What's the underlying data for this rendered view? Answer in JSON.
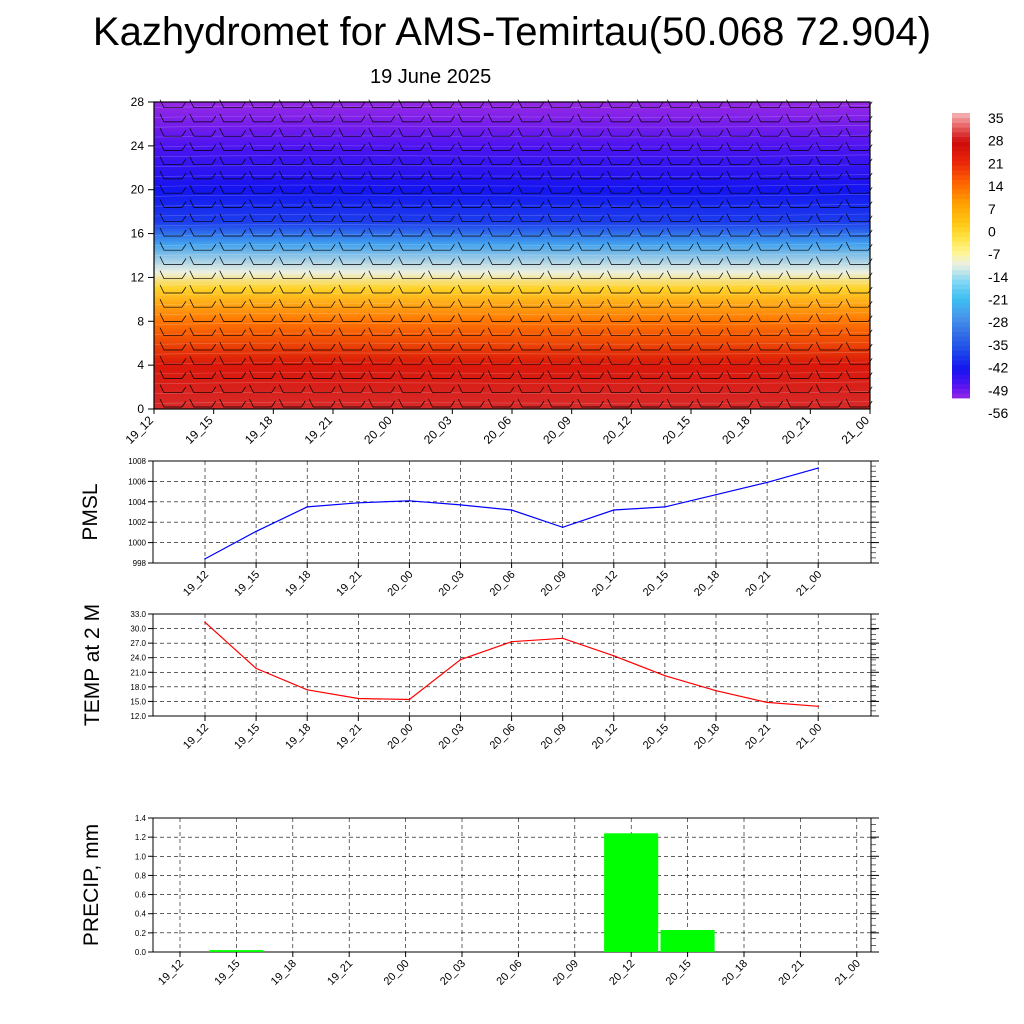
{
  "title": "Kazhydromet for AMS-Temirtau(50.068 72.904)",
  "subtitle": "19 June 2025",
  "time_labels": [
    "19_12",
    "19_15",
    "19_18",
    "19_21",
    "20_00",
    "20_03",
    "20_06",
    "20_09",
    "20_12",
    "20_15",
    "20_18",
    "20_21",
    "21_00"
  ],
  "colors": {
    "pmsl_line": "#0000ff",
    "temp_line": "#ff0000",
    "precip_bar": "#00ff00"
  },
  "chart_data": [
    {
      "type": "heatmap",
      "name": "temperature-cross-section",
      "y_ticks": [
        "0",
        "4",
        "8",
        "12",
        "16",
        "20",
        "24",
        "28"
      ],
      "ylim": [
        0,
        28
      ],
      "colorbar": {
        "labels": [
          "35",
          "28",
          "21",
          "14",
          "7",
          "0",
          "-7",
          "-14",
          "-21",
          "-28",
          "-35",
          "-42",
          "-49",
          "-56"
        ],
        "range": [
          -60,
          38
        ]
      },
      "profile": [
        {
          "level": 0,
          "value": 30
        },
        {
          "level": 4,
          "value": 25
        },
        {
          "level": 8,
          "value": 12
        },
        {
          "level": 11,
          "value": -2
        },
        {
          "level": 12.5,
          "value": -14
        },
        {
          "level": 15,
          "value": -30
        },
        {
          "level": 17,
          "value": -45
        },
        {
          "level": 20,
          "value": -50
        },
        {
          "level": 24,
          "value": -55
        },
        {
          "level": 26,
          "value": -58
        },
        {
          "level": 28,
          "value": -60
        }
      ]
    },
    {
      "type": "line",
      "ylabel": "PMSL",
      "y_ticks": [
        "998",
        "1000",
        "1002",
        "1004",
        "1006",
        "1008"
      ],
      "ylim": [
        998,
        1008
      ],
      "values": [
        998.4,
        1001.1,
        1003.5,
        1003.9,
        1004.1,
        1003.7,
        1003.2,
        1001.5,
        1003.2,
        1003.5,
        1004.7,
        1005.9,
        1007.3
      ]
    },
    {
      "type": "line",
      "ylabel": "TEMP at 2 M",
      "y_ticks": [
        "12.0",
        "15.0",
        "18.0",
        "21.0",
        "24.0",
        "27.0",
        "30.0",
        "33.0"
      ],
      "ylim": [
        12,
        33
      ],
      "values": [
        31.3,
        21.8,
        17.4,
        15.6,
        15.4,
        23.6,
        27.3,
        28.0,
        24.4,
        20.3,
        17.2,
        14.8,
        14.0
      ]
    },
    {
      "type": "bar",
      "ylabel": "PRECIP, mm",
      "y_ticks": [
        "0.0",
        "0.2",
        "0.4",
        "0.6",
        "0.8",
        "1.0",
        "1.2",
        "1.4"
      ],
      "ylim": [
        0,
        1.4
      ],
      "values": [
        0,
        0.02,
        0,
        0,
        0,
        0,
        0,
        0,
        1.24,
        0.23,
        0,
        0,
        0
      ]
    }
  ]
}
